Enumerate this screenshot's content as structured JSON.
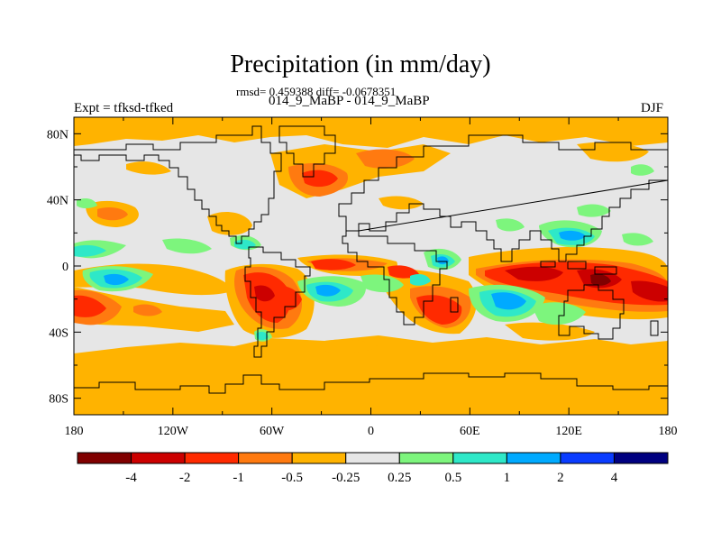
{
  "title": "Precipitation (in mm/day)",
  "stats": "rmsd= 0.459388 diff= -0.0678351",
  "subtitle": "014_9_MaBP - 014_9_MaBP",
  "left_label": "Expt = tfksd-tfked",
  "right_label": "DJF",
  "chart_data": {
    "type": "heatmap",
    "variable": "Precipitation difference",
    "units": "mm/day",
    "projection": "cylindrical equidistant",
    "lon_range": [
      -180,
      180
    ],
    "lat_range": [
      -90,
      90
    ],
    "x_ticks": [
      {
        "value": -180,
        "label": "180"
      },
      {
        "value": -120,
        "label": "120W"
      },
      {
        "value": -60,
        "label": "60W"
      },
      {
        "value": 0,
        "label": "0"
      },
      {
        "value": 60,
        "label": "60E"
      },
      {
        "value": 120,
        "label": "120E"
      },
      {
        "value": 180,
        "label": "180"
      }
    ],
    "y_ticks": [
      {
        "value": 80,
        "label": "80N"
      },
      {
        "value": 40,
        "label": "40N"
      },
      {
        "value": 0,
        "label": "0"
      },
      {
        "value": -40,
        "label": "40S"
      },
      {
        "value": -80,
        "label": "80S"
      }
    ],
    "colorbar": {
      "labels": [
        "-4",
        "-2",
        "-1",
        "-0.5",
        "-0.25",
        "0.25",
        "0.5",
        "1",
        "2",
        "4"
      ],
      "colors": [
        "#800000",
        "#cc0000",
        "#ff2a00",
        "#ff7a10",
        "#ffb300",
        "#e6e6e6",
        "#7df57d",
        "#2ee8c8",
        "#00aaff",
        "#0a3cff",
        "#000080"
      ]
    },
    "regions": [
      {
        "name": "north-polar-drying",
        "lon": [
          -180,
          180
        ],
        "lat": [
          72,
          90
        ],
        "level": "-0.25 to -0.5"
      },
      {
        "name": "southern-ocean-drying",
        "lon": [
          -180,
          180
        ],
        "lat": [
          -82,
          -52
        ],
        "level": "-0.25 to -0.5"
      },
      {
        "name": "south-pacific-drying",
        "lon": [
          -180,
          -160
        ],
        "lat": [
          -40,
          -10
        ],
        "level": "-1 to -2"
      },
      {
        "name": "south-america-drying",
        "lon": [
          -80,
          -40
        ],
        "lat": [
          -40,
          -5
        ],
        "level": "-1 to -2"
      },
      {
        "name": "south-atlantic-drying",
        "lon": [
          -50,
          -5
        ],
        "lat": [
          -5,
          5
        ],
        "level": "-1 to -2"
      },
      {
        "name": "africa-drying",
        "lon": [
          10,
          50
        ],
        "lat": [
          -35,
          -10
        ],
        "level": "-1 to -2"
      },
      {
        "name": "indian-ocean-drying",
        "lon": [
          70,
          180
        ],
        "lat": [
          -25,
          0
        ],
        "level": "-2 to -4"
      },
      {
        "name": "north-atlantic-drying",
        "lon": [
          -50,
          0
        ],
        "lat": [
          40,
          65
        ],
        "level": "-0.5 to -1"
      },
      {
        "name": "tropical-pacific-wetting",
        "lon": [
          -180,
          -140
        ],
        "lat": [
          -15,
          12
        ],
        "level": "0.5 to 2"
      },
      {
        "name": "south-atlantic-wetting",
        "lon": [
          -40,
          10
        ],
        "lat": [
          -30,
          -10
        ],
        "level": "0.5 to 2"
      },
      {
        "name": "indian-ocean-wetting",
        "lon": [
          50,
          110
        ],
        "lat": [
          -40,
          -10
        ],
        "level": "0.5 to 2"
      },
      {
        "name": "west-pacific-wetting",
        "lon": [
          90,
          140
        ],
        "lat": [
          -5,
          25
        ],
        "level": "0.5 to 2"
      }
    ]
  }
}
